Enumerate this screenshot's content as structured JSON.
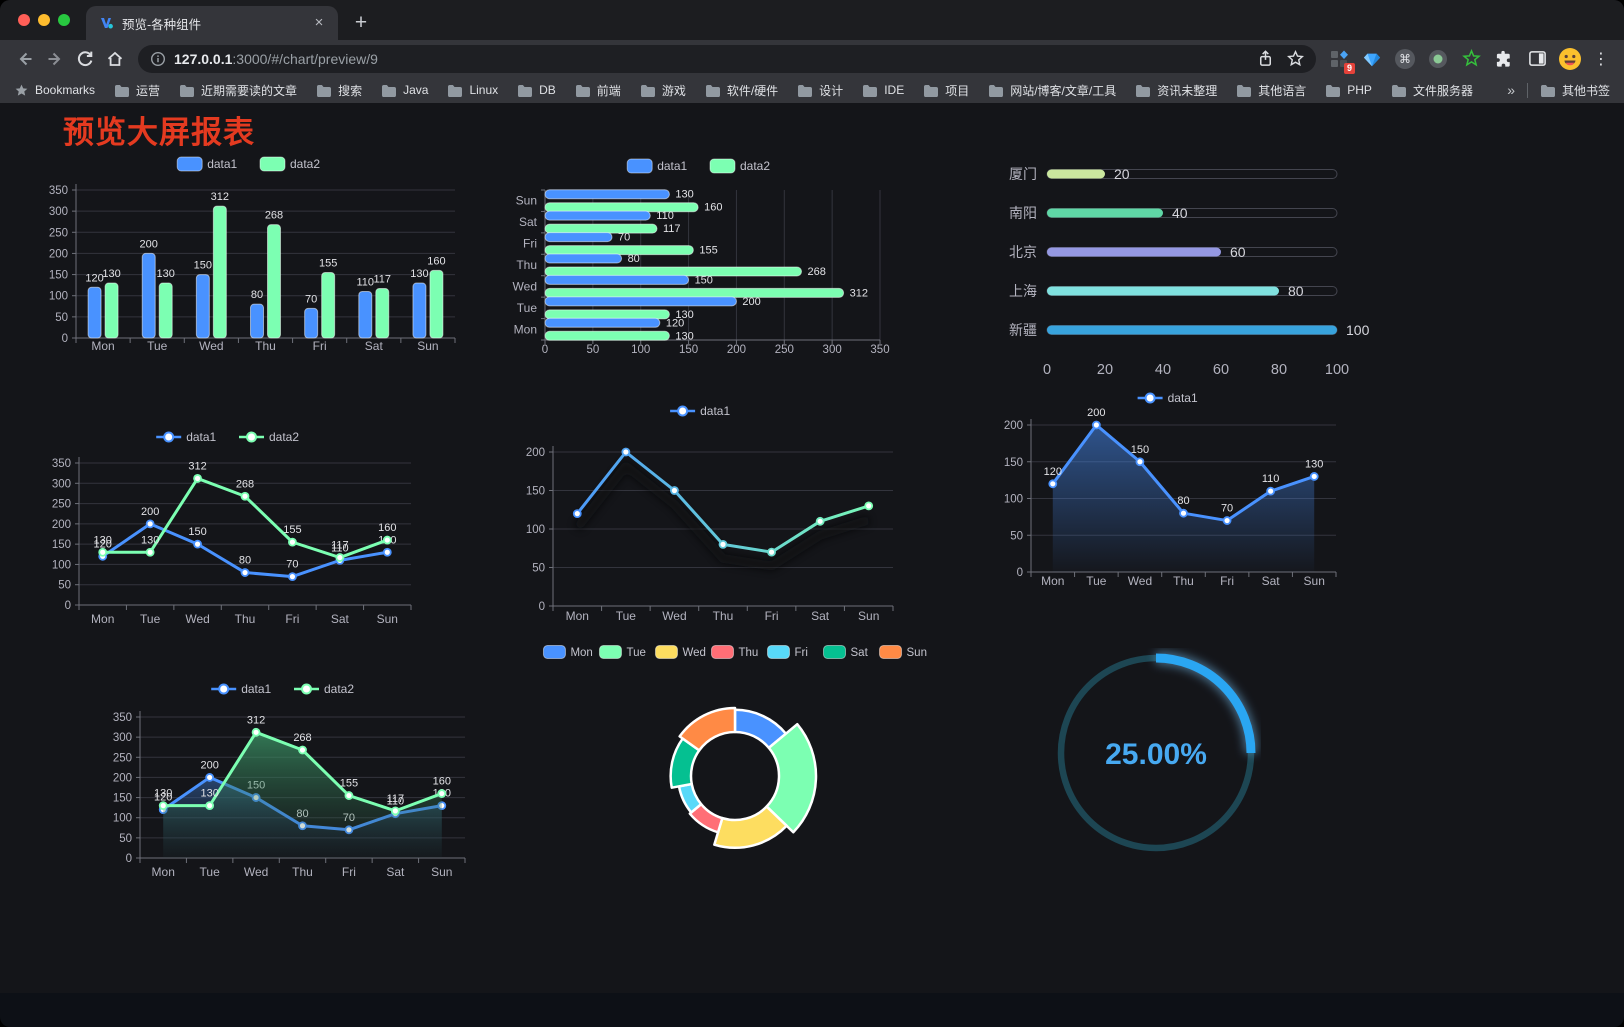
{
  "browser": {
    "tab": {
      "title": "预览-各种组件",
      "close": "×"
    },
    "new_tab": "+",
    "url": {
      "host": "127.0.0.1",
      "path": ":3000/#/chart/preview/9"
    },
    "bookmarks_label": "Bookmarks",
    "bookmarks": [
      "运营",
      "近期需要读的文章",
      "搜索",
      "Java",
      "Linux",
      "DB",
      "前端",
      "游戏",
      "软件/硬件",
      "设计",
      "IDE",
      "项目",
      "网站/博客/文章/工具",
      "资讯未整理",
      "其他语言",
      "PHP",
      "文件服务器"
    ],
    "bookmarks_overflow": "»",
    "other_bookmarks": "其他书签",
    "extension_badge": "9",
    "menu_dots": "⋮"
  },
  "page": {
    "title": "预览大屏报表"
  },
  "theme": {
    "accent_blue": "#4992ff",
    "accent_green": "#7cffb2",
    "axis_label": "#b3b3bf",
    "grid": "#33343d",
    "axis_line": "#6e7079",
    "value_label": "#e2e2e6"
  },
  "chart_data": [
    {
      "id": "bar-grouped",
      "type": "bar",
      "categories": [
        "Mon",
        "Tue",
        "Wed",
        "Thu",
        "Fri",
        "Sat",
        "Sun"
      ],
      "series": [
        {
          "name": "data1",
          "color": "#4992ff",
          "values": [
            120,
            200,
            150,
            80,
            70,
            110,
            130
          ]
        },
        {
          "name": "data2",
          "color": "#7cffb2",
          "values": [
            130,
            130,
            312,
            268,
            155,
            117,
            160
          ]
        }
      ],
      "ylim": [
        0,
        350
      ],
      "ystep": 50,
      "legend_position": "top",
      "grid": true
    },
    {
      "id": "bar-horizontal",
      "type": "bar-horizontal",
      "categories": [
        "Mon",
        "Tue",
        "Wed",
        "Thu",
        "Fri",
        "Sat",
        "Sun"
      ],
      "series": [
        {
          "name": "data1",
          "color": "#4992ff",
          "values": [
            120,
            200,
            150,
            80,
            70,
            110,
            130
          ]
        },
        {
          "name": "data2",
          "color": "#7cffb2",
          "values": [
            130,
            130,
            312,
            268,
            155,
            117,
            160
          ]
        }
      ],
      "xlim": [
        0,
        350
      ],
      "xstep": 50,
      "legend_position": "top",
      "grid": true
    },
    {
      "id": "progress",
      "type": "progress",
      "max": 100,
      "xticks": [
        0,
        20,
        40,
        60,
        80,
        100
      ],
      "items": [
        {
          "label": "厦门",
          "value": 20,
          "color": "#cbe79e"
        },
        {
          "label": "南阳",
          "value": 40,
          "color": "#5fd7a6"
        },
        {
          "label": "北京",
          "value": 60,
          "color": "#9598e2"
        },
        {
          "label": "上海",
          "value": 80,
          "color": "#80e1df"
        },
        {
          "label": "新疆",
          "value": 100,
          "color": "#38a3dd"
        }
      ]
    },
    {
      "id": "line-two",
      "type": "line",
      "categories": [
        "Mon",
        "Tue",
        "Wed",
        "Thu",
        "Fri",
        "Sat",
        "Sun"
      ],
      "ylim": [
        0,
        350
      ],
      "ystep": 50,
      "series": [
        {
          "name": "data1",
          "color": "#4992ff",
          "values": [
            120,
            200,
            150,
            80,
            70,
            110,
            130
          ],
          "labels": true
        },
        {
          "name": "data2",
          "color": "#7cffb2",
          "values": [
            130,
            130,
            312,
            268,
            155,
            117,
            160
          ],
          "labels": true
        }
      ]
    },
    {
      "id": "line-gradient",
      "type": "line",
      "categories": [
        "Mon",
        "Tue",
        "Wed",
        "Thu",
        "Fri",
        "Sat",
        "Sun"
      ],
      "ylim": [
        0,
        200
      ],
      "ystep": 50,
      "shadow": true,
      "series": [
        {
          "name": "data1",
          "color": "#4992ff",
          "gradient": [
            "#4992ff",
            "#7cffb2"
          ],
          "values": [
            120,
            200,
            150,
            80,
            70,
            110,
            130
          ],
          "labels": false
        }
      ]
    },
    {
      "id": "line-area",
      "type": "line",
      "categories": [
        "Mon",
        "Tue",
        "Wed",
        "Thu",
        "Fri",
        "Sat",
        "Sun"
      ],
      "ylim": [
        0,
        200
      ],
      "ystep": 50,
      "series": [
        {
          "name": "data1",
          "color": "#4992ff",
          "values": [
            120,
            200,
            150,
            80,
            70,
            110,
            130
          ],
          "labels": true,
          "area": [
            "rgba(73,146,255,0.50)",
            "rgba(73,146,255,0.02)"
          ]
        }
      ]
    },
    {
      "id": "line-two-area",
      "type": "line",
      "categories": [
        "Mon",
        "Tue",
        "Wed",
        "Thu",
        "Fri",
        "Sat",
        "Sun"
      ],
      "ylim": [
        0,
        350
      ],
      "ystep": 50,
      "series": [
        {
          "name": "data1",
          "color": "#4992ff",
          "values": [
            120,
            200,
            150,
            80,
            70,
            110,
            130
          ],
          "labels": true,
          "area": [
            "rgba(57,110,184,0.55)",
            "rgba(30,50,80,0.05)"
          ]
        },
        {
          "name": "data2",
          "color": "#7cffb2",
          "values": [
            130,
            130,
            312,
            268,
            155,
            117,
            160
          ],
          "labels": true,
          "area": [
            "rgba(62,158,108,0.72)",
            "rgba(40,80,60,0.05)"
          ]
        }
      ]
    },
    {
      "id": "rose",
      "type": "pie",
      "subtype": "rose-radius",
      "labels": [
        "Mon",
        "Tue",
        "Wed",
        "Thu",
        "Fri",
        "Sat",
        "Sun"
      ],
      "values": [
        120,
        200,
        150,
        80,
        70,
        110,
        130
      ],
      "colors": [
        "#4992ff",
        "#7cffb2",
        "#fddd60",
        "#ff6e76",
        "#58d9f9",
        "#05c091",
        "#ff8a45"
      ]
    },
    {
      "id": "gauge",
      "type": "gauge",
      "value": 25,
      "display": "25.00%",
      "color": "#2aa6f2",
      "track_color": "#1d4653",
      "text_color": "#47a9f1"
    }
  ]
}
